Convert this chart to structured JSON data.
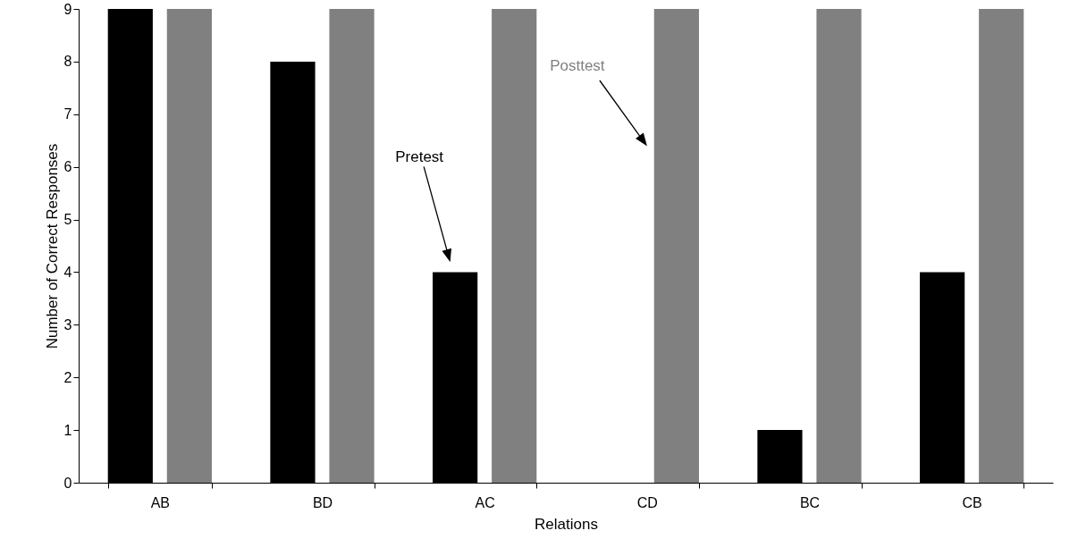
{
  "chart_data": {
    "type": "bar",
    "xlabel": "Relations",
    "ylabel": "Number of Correct Responses",
    "categories": [
      "AB",
      "BD",
      "AC",
      "CD",
      "BC",
      "CB"
    ],
    "series": [
      {
        "name": "Pretest",
        "color": "#000000",
        "values": [
          9,
          8,
          4,
          0,
          1,
          4
        ]
      },
      {
        "name": "Posttest",
        "color": "#808080",
        "values": [
          9,
          9,
          9,
          9,
          9,
          9
        ]
      }
    ],
    "ylim": [
      0,
      9
    ],
    "yticks": [
      0,
      1,
      2,
      3,
      4,
      5,
      6,
      7,
      8,
      9
    ],
    "grid": false
  }
}
